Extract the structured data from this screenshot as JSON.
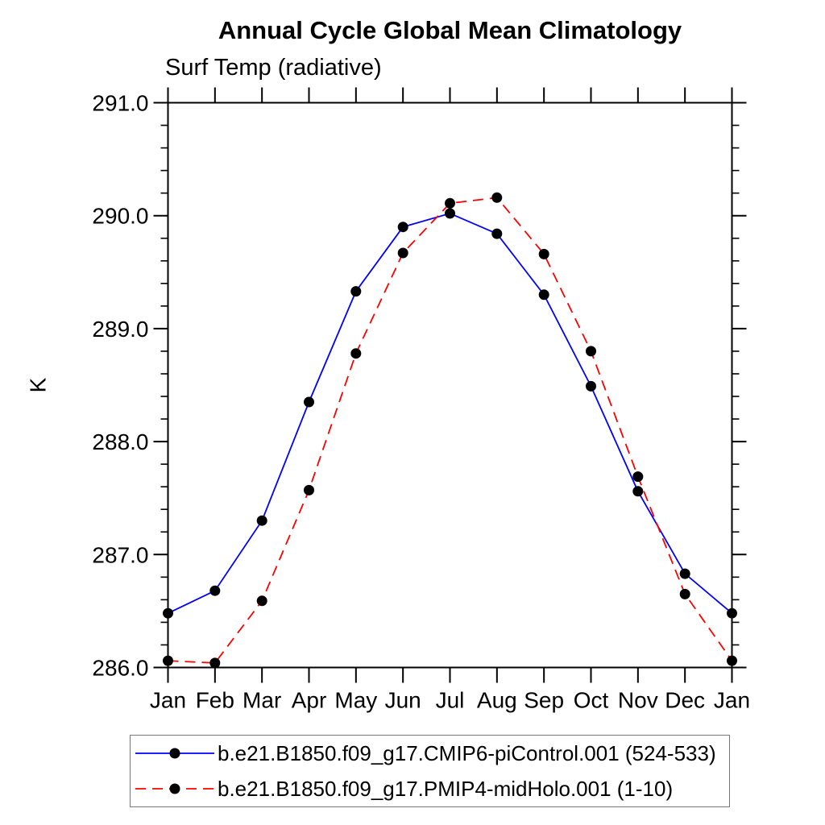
{
  "chart_data": {
    "type": "line",
    "title": "Annual Cycle Global Mean Climatology",
    "subtitle": "Surf Temp (radiative)",
    "xlabel": "",
    "ylabel": "K",
    "categories": [
      "Jan",
      "Feb",
      "Mar",
      "Apr",
      "May",
      "Jun",
      "Jul",
      "Aug",
      "Sep",
      "Oct",
      "Nov",
      "Dec",
      "Jan"
    ],
    "ylim": [
      286.0,
      291.0
    ],
    "yticks": [
      286.0,
      287.0,
      288.0,
      289.0,
      290.0,
      291.0
    ],
    "ytick_labels": [
      "286.0",
      "287.0",
      "288.0",
      "289.0",
      "290.0",
      "291.0"
    ],
    "y_minor_tick_interval": 0.2,
    "grid": false,
    "legend_position": "bottom",
    "series": [
      {
        "name": "b.e21.B1850.f09_g17.CMIP6-piControl.001 (524-533)",
        "color": "#0000ff",
        "line_style": "solid",
        "marker": "filled-circle",
        "marker_color": "#000000",
        "values": [
          286.48,
          286.68,
          287.3,
          288.35,
          289.33,
          289.9,
          290.02,
          289.84,
          289.3,
          288.49,
          287.56,
          286.83,
          286.48
        ]
      },
      {
        "name": "b.e21.B1850.f09_g17.PMIP4-midHolo.001 (1-10)",
        "color": "#ff0000",
        "line_style": "dashed",
        "marker": "filled-circle",
        "marker_color": "#000000",
        "values": [
          286.06,
          286.04,
          286.59,
          287.57,
          288.78,
          289.67,
          290.11,
          290.16,
          289.66,
          288.8,
          287.69,
          286.65,
          286.06
        ]
      }
    ]
  },
  "colors": {
    "axis": "#000000",
    "background": "#ffffff",
    "legend_border": "#777777",
    "series_blue": "#0000ff",
    "series_red": "#ff0000",
    "marker": "#000000"
  }
}
